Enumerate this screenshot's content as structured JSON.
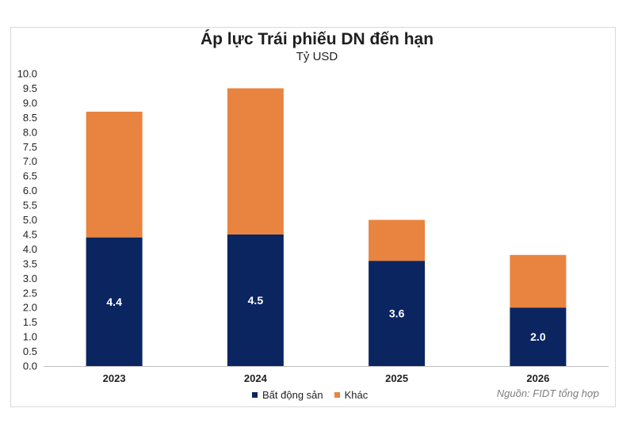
{
  "chart_data": {
    "type": "bar",
    "stacked": true,
    "title": "Áp lực Trái phiếu DN đến hạn",
    "subtitle": "Tỷ USD",
    "categories": [
      "2023",
      "2024",
      "2025",
      "2026"
    ],
    "series": [
      {
        "name": "Bất động sản",
        "color": "#0b2561",
        "values": [
          4.4,
          4.5,
          3.6,
          2.0
        ]
      },
      {
        "name": "Khác",
        "color": "#e8843f",
        "values": [
          4.3,
          5.0,
          1.4,
          1.8
        ]
      }
    ],
    "data_labels": [
      "4.4",
      "4.5",
      "3.6",
      "2.0"
    ],
    "ylim": [
      0,
      10
    ],
    "yticks": [
      "0.0",
      "0.5",
      "1.0",
      "1.5",
      "2.0",
      "2.5",
      "3.0",
      "3.5",
      "4.0",
      "4.5",
      "5.0",
      "5.5",
      "6.0",
      "6.5",
      "7.0",
      "7.5",
      "8.0",
      "8.5",
      "9.0",
      "9.5",
      "10.0"
    ],
    "legend_position": "bottom",
    "grid": false
  },
  "source_note": "Nguồn: FIDT tổng hợp"
}
